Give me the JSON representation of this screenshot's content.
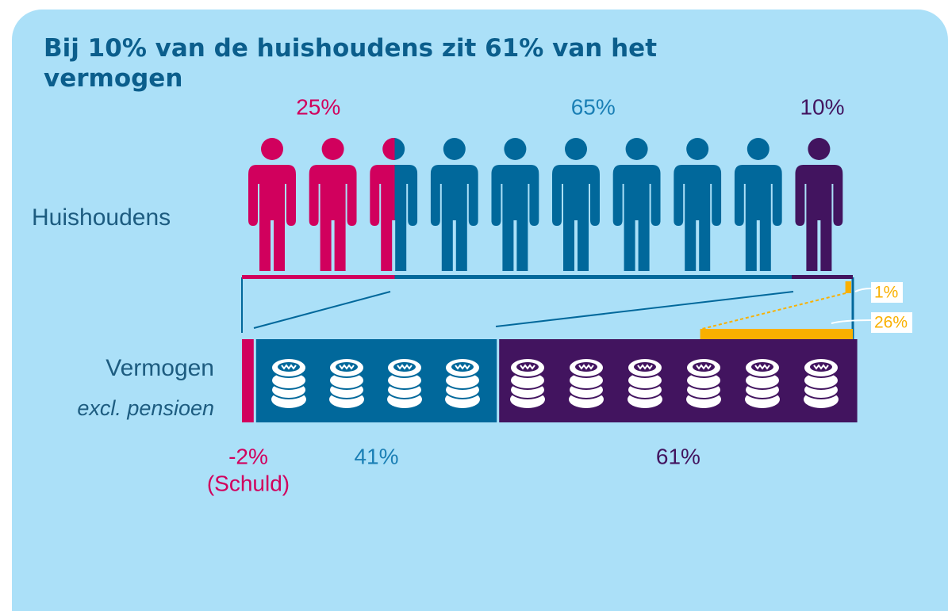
{
  "title": "Bij 10% van de huishoudens zit 61% van het vermogen",
  "rows": {
    "households": "Huishoudens",
    "wealth": "Vermogen",
    "wealth_note": "excl. pensioen"
  },
  "households": [
    {
      "label": "25%",
      "value": 25,
      "color": "#d1005d"
    },
    {
      "label": "65%",
      "value": 65,
      "color": "#01689b"
    },
    {
      "label": "10%",
      "value": 10,
      "color": "#42145f"
    }
  ],
  "wealth": [
    {
      "label": "-2%",
      "note": "(Schuld)",
      "value": -2,
      "color": "#d1005d"
    },
    {
      "label": "41%",
      "value": 41,
      "color": "#01689b"
    },
    {
      "label": "61%",
      "value": 61,
      "color": "#42145f"
    }
  ],
  "top": [
    {
      "label": "1%",
      "value": 1,
      "color": "#f9b000"
    },
    {
      "label": "26%",
      "value": 26,
      "color": "#f9b000"
    }
  ]
}
